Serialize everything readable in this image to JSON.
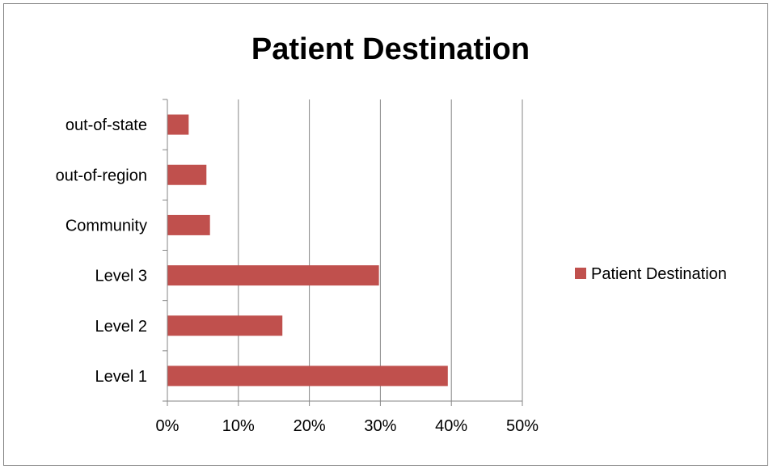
{
  "chart_data": {
    "type": "bar",
    "orientation": "horizontal",
    "title": "Patient Destination",
    "categories": [
      "Level 1",
      "Level 2",
      "Level 3",
      "Community",
      "out-of-region",
      "out-of-state"
    ],
    "series": [
      {
        "name": "Patient Destination",
        "values": [
          39.5,
          16.2,
          29.8,
          6.0,
          5.5,
          3.0
        ],
        "color": "#C0504D"
      }
    ],
    "xlim": [
      0,
      50
    ],
    "x_ticks": [
      "0%",
      "10%",
      "20%",
      "30%",
      "40%",
      "50%"
    ],
    "x_unit": "%",
    "grid": "vertical",
    "legend": "right"
  }
}
